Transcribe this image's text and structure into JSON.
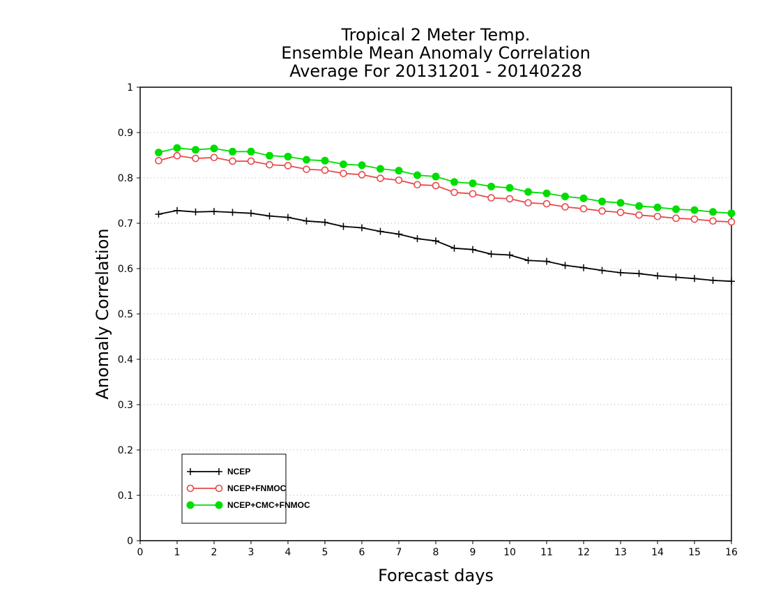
{
  "chart_data": {
    "type": "line",
    "title": [
      "Tropical 2 Meter Temp.",
      "Ensemble Mean Anomaly Correlation",
      "Average For 20131201 - 20140228"
    ],
    "xlabel": "Forecast days",
    "ylabel": "Anomaly Correlation",
    "xlim": [
      0,
      16
    ],
    "ylim": [
      0,
      1
    ],
    "xticks": [
      "0",
      "1",
      "2",
      "3",
      "4",
      "5",
      "6",
      "7",
      "8",
      "9",
      "10",
      "11",
      "12",
      "13",
      "14",
      "15",
      "16"
    ],
    "yticks": [
      "0",
      "0.1",
      "0.2",
      "0.3",
      "0.4",
      "0.5",
      "0.6",
      "0.7",
      "0.8",
      "0.9",
      "1"
    ],
    "grid": "horizontal dotted",
    "legend_position": "bottom-left",
    "x": [
      0.5,
      1,
      1.5,
      2,
      2.5,
      3,
      3.5,
      4,
      4.5,
      5,
      5.5,
      6,
      6.5,
      7,
      7.5,
      8,
      8.5,
      9,
      9.5,
      10,
      10.5,
      11,
      11.5,
      12,
      12.5,
      13,
      13.5,
      14,
      14.5,
      15,
      15.5,
      16
    ],
    "series": [
      {
        "name": "NCEP",
        "color": "#000000",
        "marker": "plus",
        "values": [
          0.72,
          0.728,
          0.725,
          0.726,
          0.724,
          0.722,
          0.716,
          0.713,
          0.705,
          0.702,
          0.693,
          0.69,
          0.682,
          0.676,
          0.666,
          0.661,
          0.645,
          0.642,
          0.632,
          0.63,
          0.618,
          0.616,
          0.607,
          0.602,
          0.596,
          0.591,
          0.589,
          0.584,
          0.581,
          0.578,
          0.574,
          0.572
        ]
      },
      {
        "name": "NCEP+FNMOC",
        "color": "#e8484a",
        "marker": "open-circle",
        "values": [
          0.838,
          0.849,
          0.843,
          0.845,
          0.837,
          0.837,
          0.829,
          0.827,
          0.819,
          0.817,
          0.81,
          0.807,
          0.799,
          0.795,
          0.785,
          0.783,
          0.768,
          0.765,
          0.756,
          0.754,
          0.745,
          0.743,
          0.736,
          0.732,
          0.727,
          0.724,
          0.718,
          0.715,
          0.711,
          0.709,
          0.705,
          0.703
        ]
      },
      {
        "name": "NCEP+CMC+FNMOC",
        "color": "#00dd00",
        "marker": "filled-circle",
        "values": [
          0.856,
          0.866,
          0.862,
          0.865,
          0.858,
          0.858,
          0.849,
          0.847,
          0.84,
          0.838,
          0.83,
          0.828,
          0.82,
          0.816,
          0.806,
          0.803,
          0.791,
          0.788,
          0.781,
          0.778,
          0.769,
          0.766,
          0.759,
          0.755,
          0.748,
          0.745,
          0.738,
          0.735,
          0.731,
          0.729,
          0.725,
          0.722
        ]
      }
    ]
  }
}
